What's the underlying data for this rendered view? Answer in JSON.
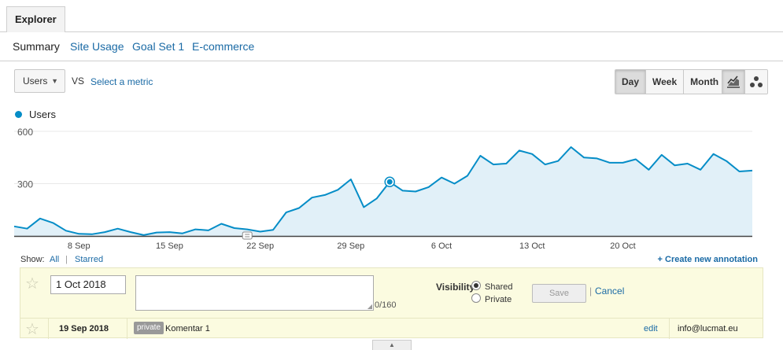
{
  "top_tabs": {
    "explorer": "Explorer"
  },
  "subnav": [
    {
      "label": "Summary",
      "active": true
    },
    {
      "label": "Site Usage"
    },
    {
      "label": "Goal Set 1"
    },
    {
      "label": "E-commerce"
    }
  ],
  "toolbar": {
    "metric": "Users",
    "vs": "VS",
    "select_metric": "Select a metric",
    "periods": [
      "Day",
      "Week",
      "Month"
    ],
    "active_period": "Day",
    "views": [
      {
        "icon": "line-chart-icon",
        "active": true
      },
      {
        "icon": "motion-chart-icon",
        "active": false
      }
    ]
  },
  "legend": {
    "label": "Users",
    "color": "#058dc7"
  },
  "chart_data": {
    "type": "area",
    "series_color": "#058dc7",
    "fill_color": "#e1f0f8",
    "ylim": [
      0,
      600
    ],
    "yticks": [
      600,
      300
    ],
    "x_tick_labels": [
      "8 Sep",
      "15 Sep",
      "22 Sep",
      "29 Sep",
      "6 Oct",
      "13 Oct",
      "20 Oct"
    ],
    "x_tick_indices": [
      5,
      12,
      19,
      26,
      33,
      40,
      47
    ],
    "highlight_index": 29,
    "annotation_index": 18,
    "series": [
      {
        "name": "Users",
        "values": [
          55,
          42,
          100,
          75,
          30,
          12,
          10,
          22,
          42,
          22,
          5,
          20,
          22,
          15,
          38,
          32,
          70,
          45,
          38,
          25,
          35,
          135,
          160,
          220,
          235,
          265,
          325,
          165,
          215,
          310,
          260,
          255,
          280,
          335,
          300,
          345,
          460,
          410,
          415,
          490,
          470,
          410,
          430,
          510,
          450,
          445,
          420,
          420,
          440,
          380,
          465,
          405,
          415,
          380,
          470,
          430,
          370,
          375
        ]
      }
    ]
  },
  "annotations": {
    "show_label": "Show:",
    "all": "All",
    "separator": "|",
    "starred": "Starred",
    "create": "+ Create new annotation",
    "form": {
      "date": "1 Oct 2018",
      "char_count": "0/160",
      "visibility_label": "Visibility:",
      "shared": "Shared",
      "private": "Private",
      "save": "Save",
      "cancel": "Cancel"
    },
    "note": {
      "date": "19 Sep 2018",
      "badge": "private",
      "text": "Komentar 1",
      "edit": "edit",
      "author": "info@lucmat.eu"
    }
  }
}
